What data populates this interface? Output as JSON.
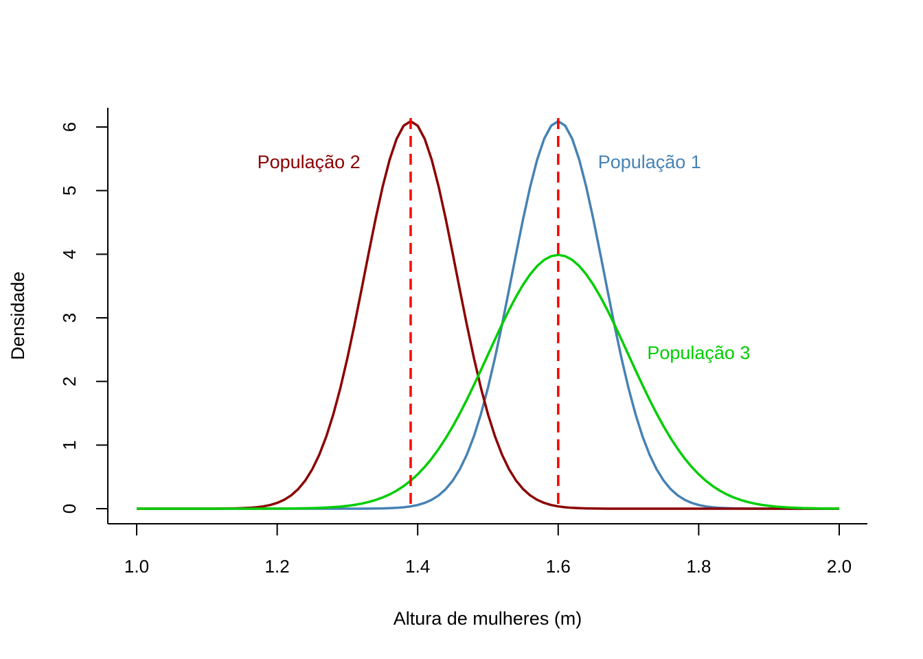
{
  "chart_data": {
    "type": "line",
    "title": "",
    "xlabel": "Altura de mulheres (m)",
    "ylabel": "Densidade",
    "xlim": [
      1.0,
      2.0
    ],
    "ylim": [
      0,
      6.2
    ],
    "x_ticks": [
      1.0,
      1.2,
      1.4,
      1.6,
      1.8,
      2.0
    ],
    "x_tick_labels": [
      "1.0",
      "1.2",
      "1.4",
      "1.6",
      "1.8",
      "2.0"
    ],
    "y_ticks": [
      0,
      1,
      2,
      3,
      4,
      5,
      6
    ],
    "y_tick_labels": [
      "0",
      "1",
      "2",
      "3",
      "4",
      "5",
      "6"
    ],
    "grid": false,
    "x_range": [
      1.0,
      2.0
    ],
    "series": [
      {
        "name": "População 1",
        "distribution": "normal",
        "mean": 1.6,
        "sd": 0.0655,
        "color": "#4682B4"
      },
      {
        "name": "População 2",
        "distribution": "normal",
        "mean": 1.39,
        "sd": 0.0655,
        "color": "#8B0000"
      },
      {
        "name": "População 3",
        "distribution": "normal",
        "mean": 1.6,
        "sd": 0.1,
        "color": "#00CD00"
      }
    ],
    "reference_lines": [
      {
        "x": 1.39,
        "style": "dashed",
        "color": "#FF0000"
      },
      {
        "x": 1.6,
        "style": "dashed",
        "color": "#FF0000"
      }
    ],
    "annotations": [
      {
        "text": "População 2",
        "x": 1.245,
        "y": 5.45,
        "color": "#8B0000"
      },
      {
        "text": "População 1",
        "x": 1.73,
        "y": 5.45,
        "color": "#4682B4"
      },
      {
        "text": "População 3",
        "x": 1.8,
        "y": 2.45,
        "color": "#00CD00"
      }
    ]
  }
}
